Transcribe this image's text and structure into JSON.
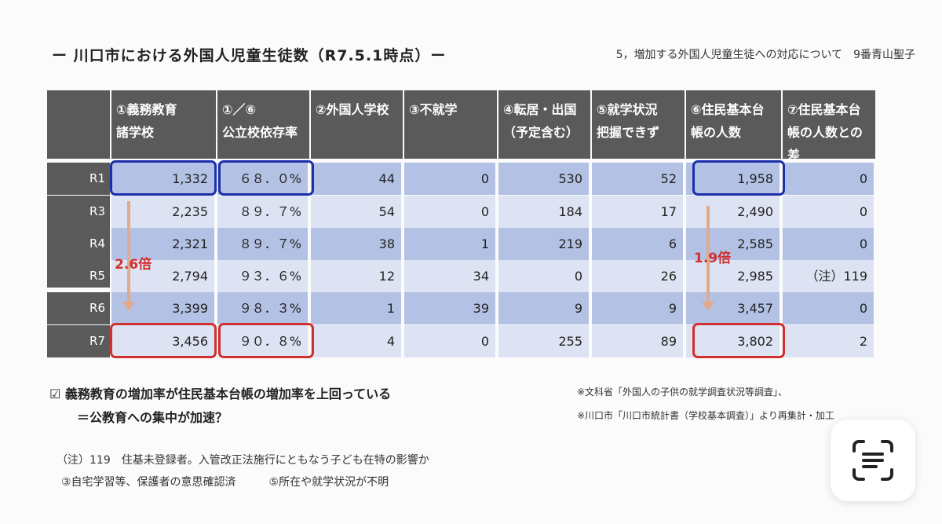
{
  "page": {
    "title": "ー 川口市における外国人児童生徒数（R7.5.1時点）ー",
    "subtitle": "5，増加する外国人児童生徒への対応について　9番青山聖子"
  },
  "table": {
    "headers": [
      {
        "line1": "①義務教育",
        "line2": "諸学校",
        "line3": ""
      },
      {
        "line1": "①／⑥",
        "line2": "公立校依存率",
        "line3": ""
      },
      {
        "line1": "②外国人学校",
        "line2": "",
        "line3": ""
      },
      {
        "line1": "③不就学",
        "line2": "",
        "line3": ""
      },
      {
        "line1": "④転居・出国",
        "line2": "（予定含む）",
        "line3": ""
      },
      {
        "line1": "⑤就学状況",
        "line2": "把握できず",
        "line3": ""
      },
      {
        "line1": "⑥住民基本台",
        "line2": "帳の人数",
        "line3": ""
      },
      {
        "line1": "⑦住民基本台",
        "line2": "帳の人数との",
        "line3": "差"
      }
    ],
    "rows": [
      {
        "label": "R1",
        "cells": [
          "1,332",
          "６８．０%",
          "44",
          "0",
          "530",
          "52",
          "1,958",
          "0"
        ]
      },
      {
        "label": "R3",
        "cells": [
          "2,235",
          "８９．７%",
          "54",
          "0",
          "184",
          "17",
          "2,490",
          "0"
        ]
      },
      {
        "label": "R4",
        "cells": [
          "2,321",
          "８９．７%",
          "38",
          "1",
          "219",
          "6",
          "2,585",
          "0"
        ]
      },
      {
        "label": "R5",
        "cells": [
          "2,794",
          "９３．６%",
          "12",
          "34",
          "0",
          "26",
          "2,985",
          "（注）119"
        ]
      },
      {
        "label": "R6",
        "cells": [
          "3,399",
          "９８．３%",
          "1",
          "39",
          "9",
          "9",
          "3,457",
          "0"
        ]
      },
      {
        "label": "R7",
        "cells": [
          "3,456",
          "９０．８%",
          "4",
          "0",
          "255",
          "89",
          "3,802",
          "2"
        ]
      }
    ]
  },
  "annotations": {
    "multiplier_left": "2.6倍",
    "multiplier_right": "1.9倍"
  },
  "notes": {
    "check_line": "☑ 義務教育の増加率が住民基本台帳の増加率を上回っている",
    "conclusion": "＝公教育への集中が加速？",
    "source1": "※文科省「外国人の子供の就学調査状況等調査」、",
    "source2": "※川口市「川口市統計書（学校基本調査）」より再集計・加工",
    "note1": "（注）119　住基未登録者。入管改正法施行にともなう子ども在特の影響か",
    "note2": "③自宅学習等、保護者の意思確認済　　　⑤所在や就学状況が不明"
  },
  "colors": {
    "header_bg": "#5a5a5a",
    "row_dark": "#b3c2e4",
    "row_light": "#dde3f2",
    "highlight_blue": "#1c2fa8",
    "highlight_red": "#d0302e",
    "arrow": "#e2a98c"
  },
  "icons": {
    "scan_button": "live-text-scan-icon"
  }
}
